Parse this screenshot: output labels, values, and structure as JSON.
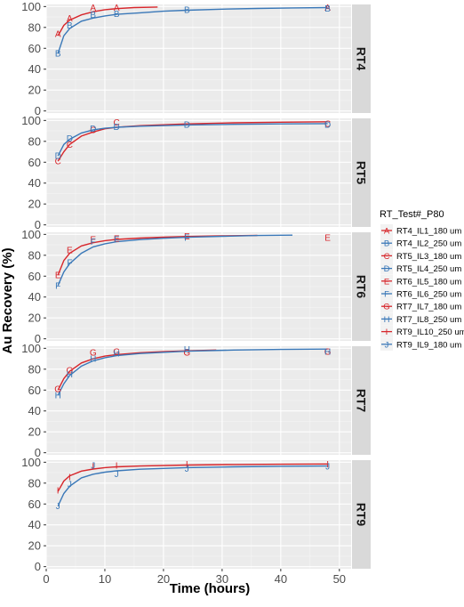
{
  "chart_data": {
    "type": "line",
    "xlabel": "Time (hours)",
    "ylabel": "Au Recovery (%)",
    "xlim": [
      0,
      52
    ],
    "ylim": [
      -2,
      102
    ],
    "x_ticks": [
      0,
      10,
      20,
      30,
      40,
      50
    ],
    "y_ticks": [
      0,
      20,
      40,
      60,
      80,
      100
    ],
    "legend": {
      "title": "RT_Test#_P80",
      "position": "right",
      "entries": [
        {
          "label": "RT4_IL1_180 um",
          "color": "#d7262b",
          "symbol": "A"
        },
        {
          "label": "RT4_IL2_250 um",
          "color": "#3a78b8",
          "symbol": "B"
        },
        {
          "label": "RT5_IL3_180 um",
          "color": "#d7262b",
          "symbol": "C"
        },
        {
          "label": "RT5_IL4_250 um",
          "color": "#3a78b8",
          "symbol": "D"
        },
        {
          "label": "RT6_IL5_180 um",
          "color": "#d7262b",
          "symbol": "E"
        },
        {
          "label": "RT6_IL6_250 um",
          "color": "#3a78b8",
          "symbol": "F"
        },
        {
          "label": "RT7_IL7_180 um",
          "color": "#d7262b",
          "symbol": "G"
        },
        {
          "label": "RT7_IL8_250 um",
          "color": "#3a78b8",
          "symbol": "H"
        },
        {
          "label": "RT9_IL10_250 um",
          "color": "#d7262b",
          "symbol": "I"
        },
        {
          "label": "RT9_IL9_180 um",
          "color": "#3a78b8",
          "symbol": "J"
        }
      ]
    },
    "panels": [
      {
        "strip": "RT4",
        "series": [
          {
            "name": "RT4_IL1_180 um",
            "color": "#d7262b",
            "symbol": "A",
            "points": [
              [
                2,
                74
              ],
              [
                4,
                89
              ],
              [
                8,
                99
              ],
              [
                12,
                99
              ],
              [
                48,
                99
              ]
            ],
            "fit": [
              [
                2,
                72
              ],
              [
                3,
                82
              ],
              [
                4,
                87
              ],
              [
                6,
                92
              ],
              [
                8,
                95
              ],
              [
                10,
                97
              ],
              [
                12,
                98
              ],
              [
                15,
                99
              ],
              [
                19,
                99.5
              ]
            ]
          },
          {
            "name": "RT4_IL2_250 um",
            "color": "#3a78b8",
            "symbol": "B",
            "points": [
              [
                2,
                55
              ],
              [
                4,
                82
              ],
              [
                8,
                92
              ],
              [
                12,
                93
              ],
              [
                24,
                97
              ],
              [
                48,
                98
              ]
            ],
            "fit": [
              [
                2,
                55
              ],
              [
                3,
                72
              ],
              [
                4,
                79
              ],
              [
                6,
                86
              ],
              [
                8,
                89
              ],
              [
                10,
                91
              ],
              [
                12,
                92.5
              ],
              [
                16,
                94
              ],
              [
                20,
                95.5
              ],
              [
                24,
                96.5
              ],
              [
                30,
                97.5
              ],
              [
                36,
                98.2
              ],
              [
                42,
                98.7
              ],
              [
                48,
                99
              ]
            ]
          }
        ]
      },
      {
        "strip": "RT5",
        "series": [
          {
            "name": "RT5_IL3_180 um",
            "color": "#d7262b",
            "symbol": "C",
            "points": [
              [
                2,
                61
              ],
              [
                4,
                77
              ],
              [
                8,
                91
              ],
              [
                12,
                98
              ],
              [
                48,
                97
              ]
            ],
            "fit": [
              [
                2,
                61
              ],
              [
                3,
                70
              ],
              [
                4,
                77
              ],
              [
                6,
                85
              ],
              [
                8,
                89
              ],
              [
                10,
                92
              ],
              [
                12,
                93.5
              ],
              [
                16,
                95
              ],
              [
                24,
                96.7
              ],
              [
                32,
                97.7
              ],
              [
                40,
                98.3
              ],
              [
                48,
                98.8
              ]
            ]
          },
          {
            "name": "RT5_IL4_250 um",
            "color": "#3a78b8",
            "symbol": "D",
            "points": [
              [
                2,
                66
              ],
              [
                4,
                83
              ],
              [
                8,
                92
              ],
              [
                12,
                94
              ],
              [
                24,
                96
              ],
              [
                48,
                96
              ]
            ],
            "fit": [
              [
                2,
                66
              ],
              [
                3,
                77
              ],
              [
                4,
                82
              ],
              [
                6,
                88
              ],
              [
                8,
                91
              ],
              [
                10,
                92.5
              ],
              [
                12,
                93.5
              ],
              [
                16,
                94.5
              ],
              [
                24,
                95.7
              ],
              [
                32,
                96.3
              ],
              [
                40,
                96.7
              ],
              [
                48,
                97
              ]
            ]
          }
        ]
      },
      {
        "strip": "RT6",
        "series": [
          {
            "name": "RT6_IL5_180 um",
            "color": "#d7262b",
            "symbol": "E",
            "points": [
              [
                2,
                61
              ],
              [
                4,
                85
              ],
              [
                8,
                95
              ],
              [
                12,
                96
              ],
              [
                24,
                98
              ],
              [
                48,
                97
              ]
            ],
            "fit": [
              [
                2,
                61
              ],
              [
                3,
                75
              ],
              [
                4,
                82
              ],
              [
                6,
                89
              ],
              [
                8,
                92
              ],
              [
                10,
                94
              ],
              [
                12,
                95.2
              ],
              [
                16,
                96.5
              ],
              [
                20,
                97.3
              ],
              [
                24,
                98
              ],
              [
                30,
                98.6
              ],
              [
                36,
                99
              ]
            ]
          },
          {
            "name": "RT6_IL6_250 um",
            "color": "#3a78b8",
            "symbol": "F",
            "points": [
              [
                2,
                51
              ],
              [
                4,
                73
              ],
              [
                8,
                93
              ],
              [
                12,
                95
              ],
              [
                24,
                97
              ]
            ],
            "fit": [
              [
                2,
                51
              ],
              [
                3,
                64
              ],
              [
                4,
                72
              ],
              [
                6,
                82
              ],
              [
                8,
                88
              ],
              [
                10,
                91
              ],
              [
                12,
                93
              ],
              [
                16,
                95
              ],
              [
                20,
                96.3
              ],
              [
                24,
                97.2
              ],
              [
                30,
                98.2
              ],
              [
                36,
                98.9
              ],
              [
                42,
                99.3
              ]
            ]
          }
        ]
      },
      {
        "strip": "RT7",
        "series": [
          {
            "name": "RT7_IL7_180 um",
            "color": "#d7262b",
            "symbol": "G",
            "points": [
              [
                2,
                61
              ],
              [
                4,
                79
              ],
              [
                8,
                96
              ],
              [
                12,
                97
              ],
              [
                24,
                96
              ],
              [
                48,
                97
              ]
            ],
            "fit": [
              [
                2,
                60
              ],
              [
                3,
                71
              ],
              [
                4,
                78
              ],
              [
                6,
                86
              ],
              [
                8,
                90
              ],
              [
                10,
                92.5
              ],
              [
                12,
                94
              ],
              [
                16,
                95.8
              ],
              [
                20,
                96.8
              ],
              [
                24,
                97.6
              ],
              [
                29,
                98.3
              ]
            ]
          },
          {
            "name": "RT7_IL8_250 um",
            "color": "#3a78b8",
            "symbol": "H",
            "points": [
              [
                2,
                55
              ],
              [
                4,
                75
              ],
              [
                8,
                90
              ],
              [
                12,
                95
              ],
              [
                24,
                99
              ],
              [
                48,
                97
              ]
            ],
            "fit": [
              [
                2,
                55
              ],
              [
                3,
                66
              ],
              [
                4,
                74
              ],
              [
                6,
                83
              ],
              [
                8,
                88
              ],
              [
                10,
                91
              ],
              [
                12,
                93
              ],
              [
                16,
                95
              ],
              [
                24,
                97.2
              ],
              [
                32,
                98.3
              ],
              [
                40,
                98.9
              ],
              [
                48,
                99.3
              ]
            ]
          }
        ]
      },
      {
        "strip": "RT9",
        "series": [
          {
            "name": "RT9_IL10_250 um",
            "color": "#d7262b",
            "symbol": "I",
            "points": [
              [
                2,
                73
              ],
              [
                4,
                86
              ],
              [
                8,
                96
              ],
              [
                12,
                97
              ],
              [
                24,
                98
              ],
              [
                48,
                98
              ]
            ],
            "fit": [
              [
                2,
                72
              ],
              [
                3,
                82
              ],
              [
                4,
                87
              ],
              [
                6,
                91.5
              ],
              [
                8,
                93.5
              ],
              [
                10,
                94.8
              ],
              [
                12,
                95.6
              ],
              [
                16,
                96.4
              ],
              [
                24,
                97.3
              ],
              [
                32,
                97.8
              ],
              [
                40,
                98.1
              ],
              [
                48,
                98.3
              ]
            ]
          },
          {
            "name": "RT9_IL9_180 um",
            "color": "#3a78b8",
            "symbol": "J",
            "points": [
              [
                2,
                58
              ],
              [
                4,
                79
              ],
              [
                8,
                97
              ],
              [
                12,
                89
              ],
              [
                24,
                94
              ],
              [
                48,
                96
              ]
            ],
            "fit": [
              [
                2,
                58
              ],
              [
                3,
                70
              ],
              [
                4,
                77
              ],
              [
                6,
                85
              ],
              [
                8,
                88.5
              ],
              [
                10,
                90.5
              ],
              [
                12,
                91.8
              ],
              [
                16,
                93.3
              ],
              [
                24,
                94.8
              ],
              [
                32,
                95.6
              ],
              [
                40,
                96.1
              ],
              [
                48,
                96.4
              ]
            ]
          }
        ]
      }
    ]
  }
}
